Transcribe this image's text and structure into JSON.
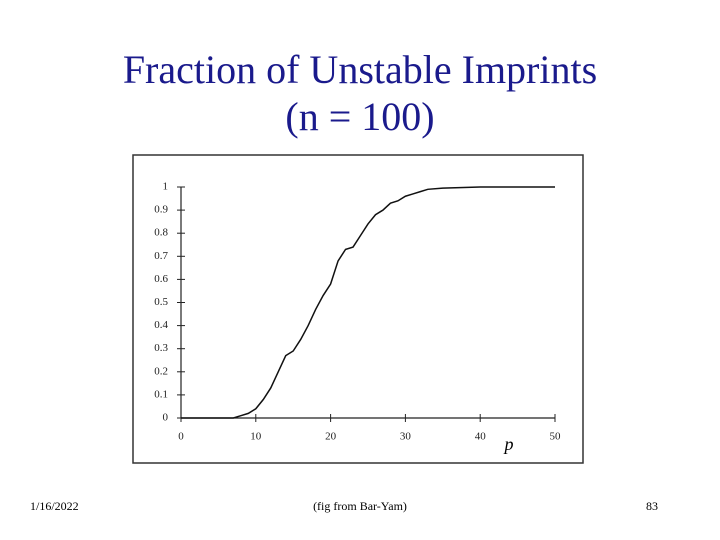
{
  "slide": {
    "title": "Fraction of Unstable Imprints",
    "subtitle": "(n = 100)",
    "footer_date": "1/16/2022",
    "footer_note": "(fig from Bar-Yam)",
    "page_number": "83"
  },
  "chart_data": {
    "type": "line",
    "x_label": "p",
    "x": [
      0,
      5,
      7,
      8,
      9,
      10,
      11,
      12,
      13,
      14,
      15,
      16,
      17,
      18,
      19,
      20,
      21,
      22,
      23,
      24,
      25,
      26,
      27,
      28,
      29,
      30,
      31,
      32,
      33,
      35,
      40,
      50
    ],
    "values": [
      0,
      0,
      0,
      0.01,
      0.02,
      0.04,
      0.08,
      0.13,
      0.2,
      0.27,
      0.29,
      0.34,
      0.4,
      0.47,
      0.53,
      0.58,
      0.68,
      0.73,
      0.74,
      0.79,
      0.84,
      0.88,
      0.9,
      0.93,
      0.94,
      0.96,
      0.97,
      0.98,
      0.99,
      0.995,
      1,
      1
    ],
    "color": "#111111",
    "xlim": [
      0,
      50
    ],
    "xticks": [
      0,
      10,
      20,
      30,
      40,
      50
    ],
    "ylim": [
      0,
      1
    ],
    "yticks": [
      0,
      0.1,
      0.2,
      0.3,
      0.4,
      0.5,
      0.6,
      0.7,
      0.8,
      0.9,
      1
    ]
  }
}
